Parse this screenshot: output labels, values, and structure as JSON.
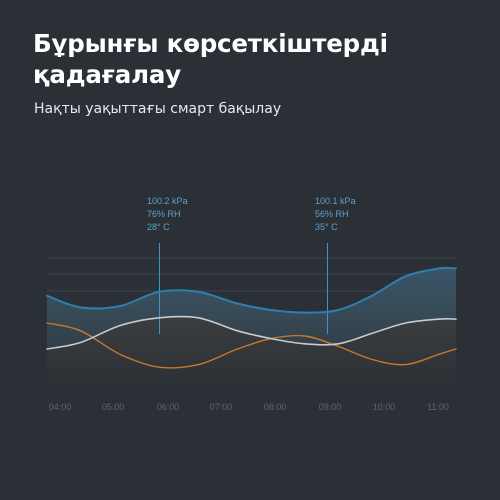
{
  "header": {
    "title": "Бұрынғы көрсеткіштерді қадағалау",
    "subtitle": "Нақты уақыттағы смарт бақылау"
  },
  "colors": {
    "background": "#2b3036",
    "pressure": "#2e7fb0",
    "humidity": "#c4cbd1",
    "temperature": "#c8782e",
    "marker": "#3a95c9",
    "annotation_text": "#5aa2cf",
    "tick_text": "#5d6670"
  },
  "chart_data": {
    "type": "area",
    "title": "",
    "xlabel": "",
    "ylabel": "",
    "categories": [
      "04:00",
      "05:00",
      "06:00",
      "07:00",
      "08:00",
      "09:00",
      "10:00",
      "11:00"
    ],
    "x_range": [
      4.0,
      11.3
    ],
    "y_range": [
      0,
      1
    ],
    "grid": true,
    "series": [
      {
        "key": "pressure",
        "x": [
          4.0,
          4.6,
          5.3,
          6.0,
          6.7,
          7.4,
          8.0,
          8.6,
          9.2,
          9.8,
          10.4,
          11.0,
          11.3
        ],
        "values": [
          0.71,
          0.62,
          0.63,
          0.74,
          0.74,
          0.65,
          0.6,
          0.58,
          0.6,
          0.71,
          0.86,
          0.92,
          0.92
        ]
      },
      {
        "key": "humidity",
        "x": [
          4.0,
          4.6,
          5.3,
          6.0,
          6.7,
          7.4,
          8.0,
          8.6,
          9.2,
          9.8,
          10.4,
          11.0,
          11.3
        ],
        "values": [
          0.3,
          0.35,
          0.48,
          0.54,
          0.54,
          0.44,
          0.38,
          0.34,
          0.34,
          0.42,
          0.5,
          0.53,
          0.53
        ]
      },
      {
        "key": "temperature",
        "x": [
          4.0,
          4.6,
          5.3,
          6.0,
          6.7,
          7.4,
          8.0,
          8.6,
          9.2,
          9.8,
          10.4,
          11.0,
          11.3
        ],
        "values": [
          0.5,
          0.44,
          0.26,
          0.16,
          0.18,
          0.3,
          0.38,
          0.4,
          0.32,
          0.22,
          0.18,
          0.26,
          0.3
        ]
      }
    ],
    "annotations": [
      {
        "x": 6.0,
        "lines": [
          "100.2 kPa",
          "76% RH",
          "28° C"
        ]
      },
      {
        "x": 9.0,
        "lines": [
          "100.1 kPa",
          "56% RH",
          "35° C"
        ]
      }
    ]
  }
}
